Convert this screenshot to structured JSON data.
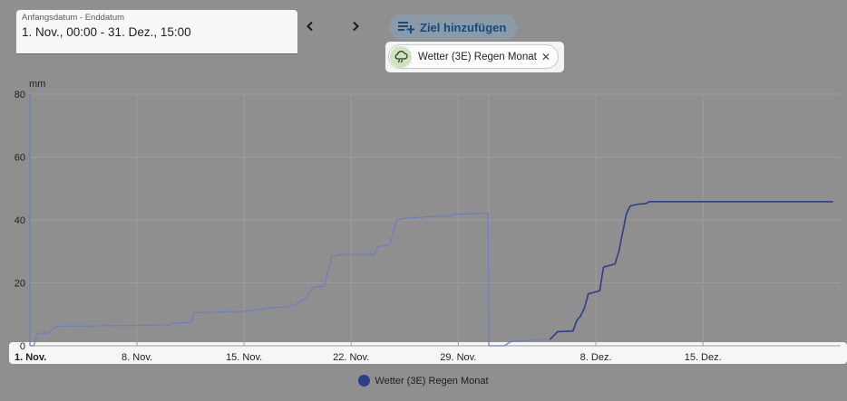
{
  "date_range": {
    "label": "Anfangsdatum - Enddatum",
    "value": "1. Nov., 00:00 - 31. Dez., 15:00"
  },
  "nav": {
    "prev_icon": "chevron-left-icon",
    "next_icon": "chevron-right-icon"
  },
  "add_target": {
    "label": "Ziel hinzufügen",
    "icon": "playlist-add-icon"
  },
  "chip": {
    "label": "Wetter (3E) Regen Monat",
    "icon": "cloud-rain-icon",
    "close_icon": "close-icon"
  },
  "legend": {
    "label": "Wetter (3E) Regen Monat",
    "color": "#2c3e8c"
  },
  "chart_data": {
    "type": "line",
    "ylabel": "mm",
    "ylim": [
      0,
      80
    ],
    "yticks": [
      0,
      20,
      40,
      60,
      80
    ],
    "xlim": [
      "2023-11-01",
      "2023-12-24"
    ],
    "xticks": [
      {
        "date": "2023-11-01",
        "label": "1. Nov.",
        "bold": true
      },
      {
        "date": "2023-11-08",
        "label": "8. Nov."
      },
      {
        "date": "2023-11-15",
        "label": "15. Nov."
      },
      {
        "date": "2023-11-22",
        "label": "22. Nov."
      },
      {
        "date": "2023-11-29",
        "label": "29. Nov."
      },
      {
        "date": "2023-12-01",
        "label": "",
        "month_line": true
      },
      {
        "date": "2023-12-08",
        "label": "8. Dez."
      },
      {
        "date": "2023-12-15",
        "label": "15. Dez."
      }
    ],
    "grid": true,
    "series": [
      {
        "name": "Wetter (3E) Regen Monat",
        "color": "#6f80bd",
        "points": [
          [
            "2023-11-01 00:00",
            0
          ],
          [
            "2023-11-01 06:00",
            0
          ],
          [
            "2023-11-01 12:00",
            4
          ],
          [
            "2023-11-02 06:00",
            4
          ],
          [
            "2023-11-02 12:00",
            5.5
          ],
          [
            "2023-11-02 18:00",
            6.2
          ],
          [
            "2023-11-05 00:00",
            6.3
          ],
          [
            "2023-11-10 00:00",
            6.6
          ],
          [
            "2023-11-10 12:00",
            7.2
          ],
          [
            "2023-11-11 12:00",
            7.4
          ],
          [
            "2023-11-11 18:00",
            10.5
          ],
          [
            "2023-11-15 00:00",
            11
          ],
          [
            "2023-11-16 00:00",
            11.5
          ],
          [
            "2023-11-16 12:00",
            12
          ],
          [
            "2023-11-18 00:00",
            12.5
          ],
          [
            "2023-11-18 12:00",
            13.5
          ],
          [
            "2023-11-19 00:00",
            15
          ],
          [
            "2023-11-19 12:00",
            18.5
          ],
          [
            "2023-11-20 06:00",
            19
          ],
          [
            "2023-11-20 12:00",
            24
          ],
          [
            "2023-11-20 18:00",
            28.5
          ],
          [
            "2023-11-21 06:00",
            29
          ],
          [
            "2023-11-23 12:00",
            29
          ],
          [
            "2023-11-23 18:00",
            31.5
          ],
          [
            "2023-11-24 12:00",
            32
          ],
          [
            "2023-11-24 18:00",
            36
          ],
          [
            "2023-11-25 00:00",
            40
          ],
          [
            "2023-11-25 12:00",
            40.5
          ],
          [
            "2023-11-27 00:00",
            41
          ],
          [
            "2023-11-28 12:00",
            41.2
          ],
          [
            "2023-11-28 18:00",
            41.8
          ],
          [
            "2023-11-30 23:00",
            42.2
          ]
        ]
      },
      {
        "name": "Wetter (3E) Regen Monat",
        "color": "#6f80bd",
        "points": [
          [
            "2023-12-01 00:00",
            0
          ],
          [
            "2023-12-02 00:00",
            0
          ],
          [
            "2023-12-02 12:00",
            1.5
          ],
          [
            "2023-12-03 12:00",
            1.5
          ],
          [
            "2023-12-04 00:00",
            2
          ],
          [
            "2023-12-05 00:00",
            2
          ]
        ]
      },
      {
        "name": "Wetter (3E) Regen Monat",
        "color": "#2c3e8c",
        "points": [
          [
            "2023-12-05 00:00",
            2
          ],
          [
            "2023-12-05 12:00",
            4.5
          ],
          [
            "2023-12-06 12:00",
            4.7
          ],
          [
            "2023-12-06 18:00",
            8
          ],
          [
            "2023-12-07 00:00",
            9.5
          ],
          [
            "2023-12-07 06:00",
            12
          ],
          [
            "2023-12-07 12:00",
            16.5
          ],
          [
            "2023-12-08 06:00",
            17.5
          ],
          [
            "2023-12-08 12:00",
            25
          ],
          [
            "2023-12-09 06:00",
            26
          ],
          [
            "2023-12-09 12:00",
            30
          ],
          [
            "2023-12-09 18:00",
            36
          ],
          [
            "2023-12-10 00:00",
            42
          ],
          [
            "2023-12-10 06:00",
            44.5
          ],
          [
            "2023-12-10 18:00",
            45
          ],
          [
            "2023-12-11 06:00",
            45.2
          ],
          [
            "2023-12-11 12:00",
            45.8
          ],
          [
            "2023-12-23 12:00",
            45.8
          ]
        ]
      }
    ]
  }
}
